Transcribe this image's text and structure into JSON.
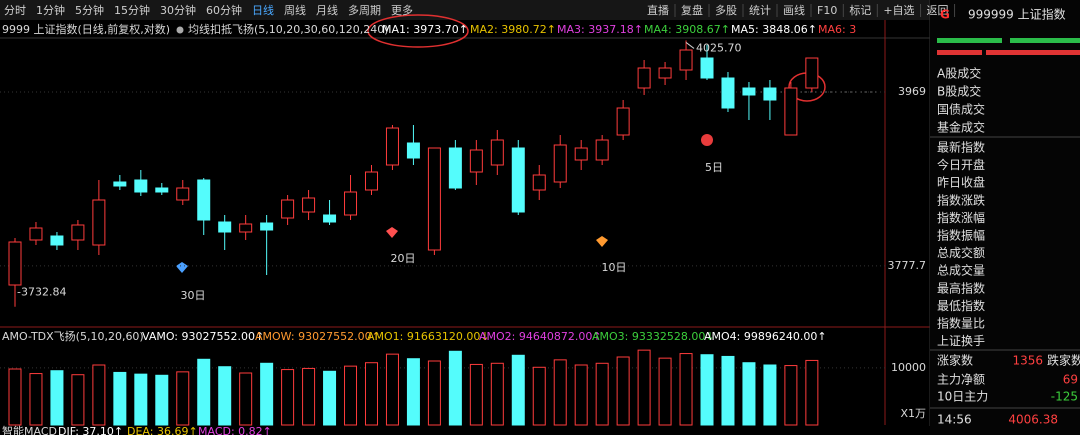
{
  "toolbar": {
    "left": [
      "分时",
      "1分钟",
      "5分钟",
      "15分钟",
      "30分钟",
      "60分钟",
      "日线",
      "周线",
      "月线",
      "多周期",
      "更多"
    ],
    "right": [
      "直播",
      "复盘",
      "多股",
      "统计",
      "画线",
      "F10",
      "标记",
      "+自选",
      "返回"
    ]
  },
  "header": {
    "symbol": "9999 上证指数(日线,前复权,对数)",
    "indicator": "均线扣抵飞扬(5,10,20,30,60,120,240)",
    "ma": [
      "MA1: 3973.70↑",
      "MA2: 3980.72↑",
      "MA3: 3937.18↑",
      "MA4: 3908.67↑",
      "MA5: 3848.06↑",
      "MA6: 3"
    ]
  },
  "chart_data": [
    {
      "type": "candlestick",
      "up_color": "#ff3c3c",
      "down_color": "#54fcfc",
      "open": [
        3756.7,
        3806.2,
        3810.6,
        3806.2,
        3800.7,
        3870.0,
        3872.2,
        3863.4,
        3850.2,
        3872.2,
        3826.0,
        3815.0,
        3824.9,
        3830.4,
        3837.0,
        3833.7,
        3833.7,
        3861.2,
        3888.7,
        3912.9,
        3795.2,
        3907.4,
        3881.0,
        3888.7,
        3907.4,
        3861.2,
        3870.0,
        3894.2,
        3894.2,
        3921.7,
        3973.4,
        3984.4,
        3993.2,
        4006.4,
        3984.4,
        3973.4,
        3973.4,
        3921.7,
        3973.4
      ],
      "high": [
        3808.4,
        3826.0,
        3815.0,
        3828.2,
        3872.2,
        3877.7,
        3883.2,
        3868.9,
        3872.2,
        3874.4,
        3833.7,
        3833.7,
        3833.7,
        3855.7,
        3861.2,
        3850.2,
        3877.7,
        3888.7,
        3932.7,
        3932.7,
        3907.4,
        3916.2,
        3916.2,
        3927.2,
        3916.2,
        3888.7,
        3921.7,
        3916.2,
        3921.7,
        3960.2,
        4004.2,
        4002.0,
        4025.7,
        4020.7,
        3991.0,
        3980.0,
        3982.2,
        3980.0,
        4006.4
      ],
      "low": [
        3732.84,
        3800.7,
        3795.2,
        3795.2,
        3789.7,
        3861.2,
        3854.6,
        3855.7,
        3844.7,
        3811.7,
        3795.2,
        3806.2,
        3767.7,
        3822.7,
        3828.2,
        3822.7,
        3828.2,
        3855.7,
        3883.2,
        3888.7,
        3789.7,
        3861.2,
        3866.7,
        3877.7,
        3833.7,
        3850.2,
        3863.4,
        3883.2,
        3888.7,
        3916.2,
        3965.7,
        3976.7,
        3982.2,
        3982.2,
        3947.0,
        3938.2,
        3938.2,
        3921.7,
        3969.0
      ],
      "close": [
        3804.0,
        3819.4,
        3800.7,
        3822.7,
        3850.2,
        3865.6,
        3859.0,
        3859.0,
        3863.4,
        3828.2,
        3815.0,
        3823.8,
        3817.2,
        3850.2,
        3852.4,
        3826.0,
        3859.0,
        3881.0,
        3929.4,
        3896.4,
        3907.4,
        3863.4,
        3905.2,
        3916.2,
        3837.0,
        3877.7,
        3910.7,
        3907.4,
        3916.2,
        3951.4,
        3995.4,
        3995.4,
        4015.2,
        3984.4,
        3951.4,
        3965.7,
        3960.2,
        3973.4,
        4006.38
      ],
      "ylim": [
        3712.7,
        4026.2
      ],
      "yticks": [
        3969,
        3777.7
      ],
      "max_label": "4025.70",
      "min_label": "-3732.84",
      "ma_day_labels": [
        "30日",
        "20日",
        "10日",
        "5日"
      ]
    },
    {
      "type": "bar",
      "values": [
        9800,
        9000,
        9500,
        8800,
        10500,
        9200,
        8900,
        8700,
        9300,
        11500,
        10200,
        9100,
        10800,
        9700,
        9900,
        9400,
        10300,
        10900,
        12400,
        11600,
        11200,
        12900,
        10600,
        10800,
        12200,
        10100,
        11400,
        10500,
        10800,
        11900,
        13100,
        11700,
        12500,
        12300,
        12000,
        10900,
        10500,
        10400,
        11300
      ],
      "ylim": [
        0,
        14000
      ],
      "yticks": [
        10000
      ],
      "unit_label": "X1万"
    }
  ],
  "volume_header": {
    "indicator": "AMO-TDX飞扬(5,10,20,60)",
    "values": [
      "VAMO: 93027552.00↑",
      "AMOW: 93027552.00↑",
      "AMO1: 91663120.00↓",
      "AMO2: 94640872.00↑",
      "AMO3: 93332528.00↓",
      "AMO4: 99896240.00↑"
    ]
  },
  "macd_bar": {
    "name": "智能MACD",
    "values": [
      "DIF: 37.10↑",
      "DEA: 36.69↑",
      "MACD: 0.82↑"
    ]
  },
  "side_panel": {
    "badge": "G",
    "title": "999999 上证指数",
    "fields": [
      "A股成交",
      "B股成交",
      "国债成交",
      "基金成交",
      "最新指数",
      "今日开盘",
      "昨日收盘",
      "指数涨跌",
      "指数涨幅",
      "指数振幅",
      "总成交额",
      "总成交量",
      "最高指数",
      "最低指数",
      "指数量比",
      "上证换手"
    ],
    "advancers_label": "涨家数",
    "advancers": "1356",
    "decliners_label": "跌家数",
    "rows": [
      {
        "label": "主力净额",
        "value": "69"
      },
      {
        "label": "10日主力",
        "value": "-125"
      }
    ],
    "time": "14:56",
    "last": "4006.38"
  }
}
